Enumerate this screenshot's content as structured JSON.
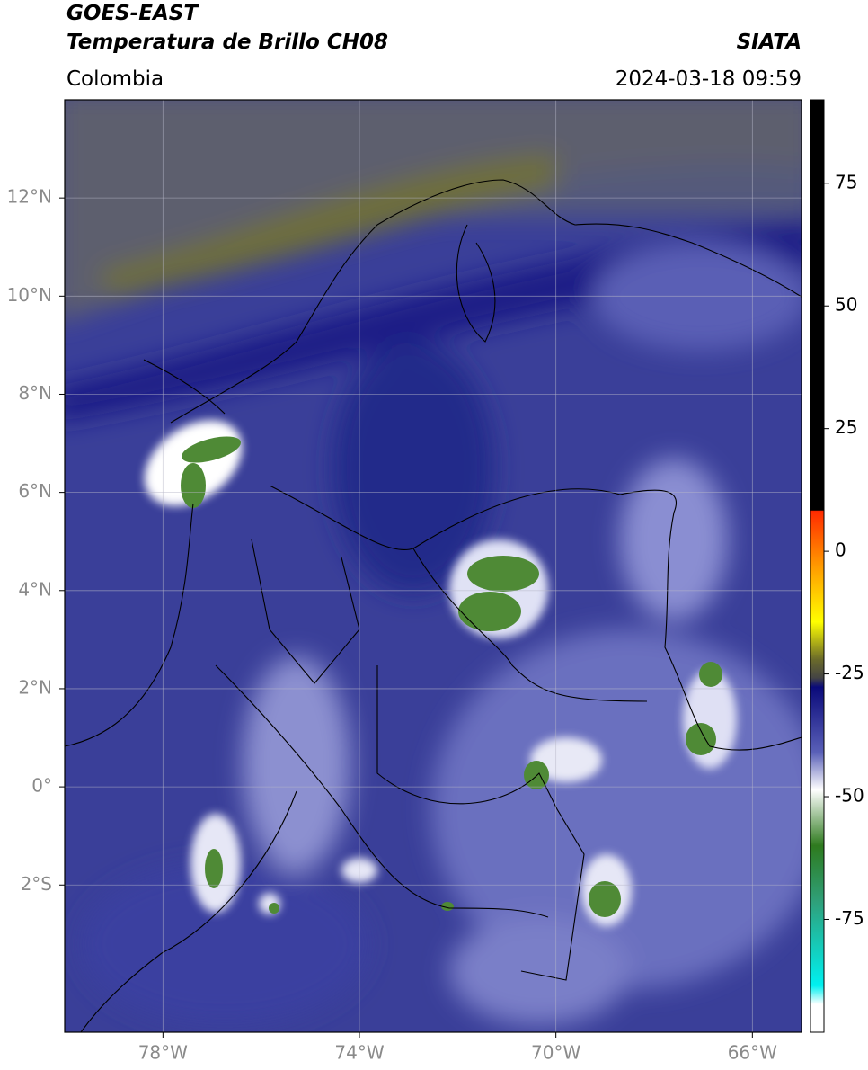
{
  "header": {
    "title_line1": "GOES-EAST",
    "title_line2": "Temperatura de Brillo CH08",
    "region": "Colombia",
    "source": "SIATA",
    "datetime": "2024-03-18 09:59"
  },
  "map": {
    "lon_lim": [
      -80,
      -65
    ],
    "lat_lim": [
      -5,
      14
    ],
    "lon_ticks": [
      {
        "value": -78,
        "label": "78°W"
      },
      {
        "value": -74,
        "label": "74°W"
      },
      {
        "value": -70,
        "label": "70°W"
      },
      {
        "value": -66,
        "label": "66°W"
      }
    ],
    "lat_ticks": [
      {
        "value": 12,
        "label": "12°N"
      },
      {
        "value": 10,
        "label": "10°N"
      },
      {
        "value": 8,
        "label": "8°N"
      },
      {
        "value": 6,
        "label": "6°N"
      },
      {
        "value": 4,
        "label": "4°N"
      },
      {
        "value": 2,
        "label": "2°N"
      },
      {
        "value": 0,
        "label": "0°"
      },
      {
        "value": -2,
        "label": "2°S"
      }
    ]
  },
  "colorbar": {
    "lim": [
      -98,
      92
    ],
    "ticks": [
      75,
      50,
      25,
      0,
      -25,
      -50,
      -75
    ]
  }
}
